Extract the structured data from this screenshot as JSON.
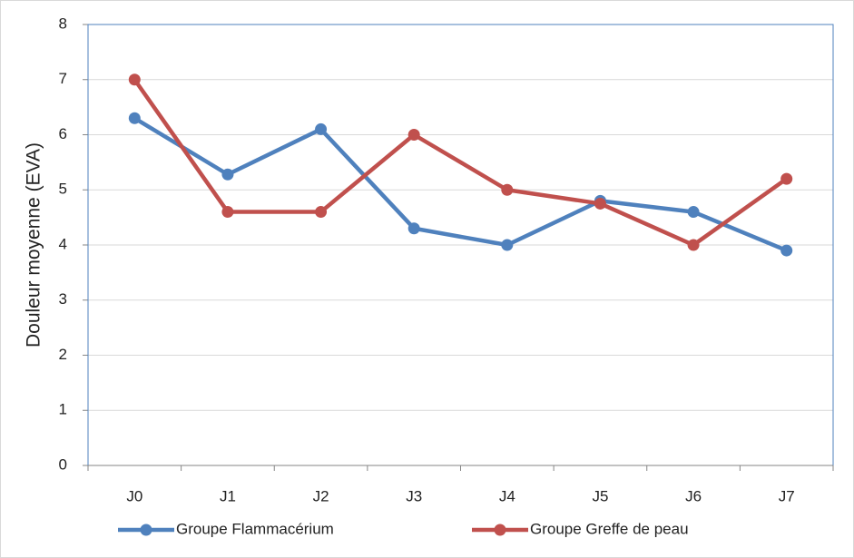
{
  "chart_data": {
    "type": "line",
    "ylabel": "Douleur moyenne (EVA)",
    "categories": [
      "J0",
      "J1",
      "J2",
      "J3",
      "J4",
      "J5",
      "J6",
      "J7"
    ],
    "series": [
      {
        "name": "Groupe Flammacérium",
        "color": "#4f81bd",
        "values": [
          6.3,
          5.28,
          6.1,
          4.3,
          4.0,
          4.8,
          4.6,
          3.9
        ]
      },
      {
        "name": "Groupe Greffe de peau",
        "color": "#c0504d",
        "values": [
          7.0,
          4.6,
          4.6,
          6.0,
          5.0,
          4.75,
          4.0,
          5.2
        ]
      }
    ],
    "ylim": [
      0,
      8
    ],
    "yticks": [
      0,
      1,
      2,
      3,
      4,
      5,
      6,
      7,
      8
    ],
    "grid": true,
    "legend": "bottom"
  }
}
